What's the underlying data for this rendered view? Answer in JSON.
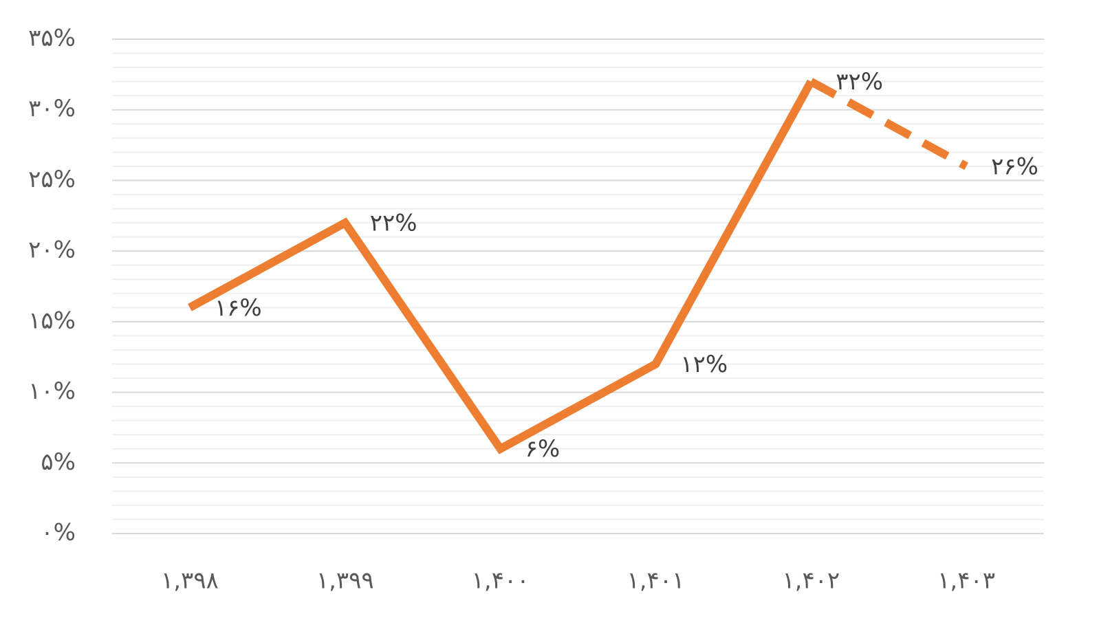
{
  "chart_data": {
    "type": "line",
    "categories": [
      "۱,۳۹۸",
      "۱,۳۹۹",
      "۱,۴۰۰",
      "۱,۴۰۱",
      "۱,۴۰۲",
      "۱,۴۰۳"
    ],
    "series": [
      {
        "color": "#ed7d31",
        "values": [
          16,
          22,
          6,
          12,
          32,
          26
        ],
        "value_labels": [
          "۱۶%",
          "۲۲%",
          "۶%",
          "۱۲%",
          "۳۲%",
          "۲۶%"
        ],
        "dashed_after": 4
      }
    ],
    "ylim": [
      0,
      35
    ],
    "yticks": [
      {
        "value": 0,
        "label": "۰%"
      },
      {
        "value": 5,
        "label": "۵%"
      },
      {
        "value": 10,
        "label": "۱۰%"
      },
      {
        "value": 15,
        "label": "۱۵%"
      },
      {
        "value": 20,
        "label": "۲۰%"
      },
      {
        "value": 25,
        "label": "۲۵%"
      },
      {
        "value": 30,
        "label": "۳۰%"
      },
      {
        "value": 35,
        "label": "۳۵%"
      }
    ],
    "grid": true,
    "minor_divisions": 5
  }
}
